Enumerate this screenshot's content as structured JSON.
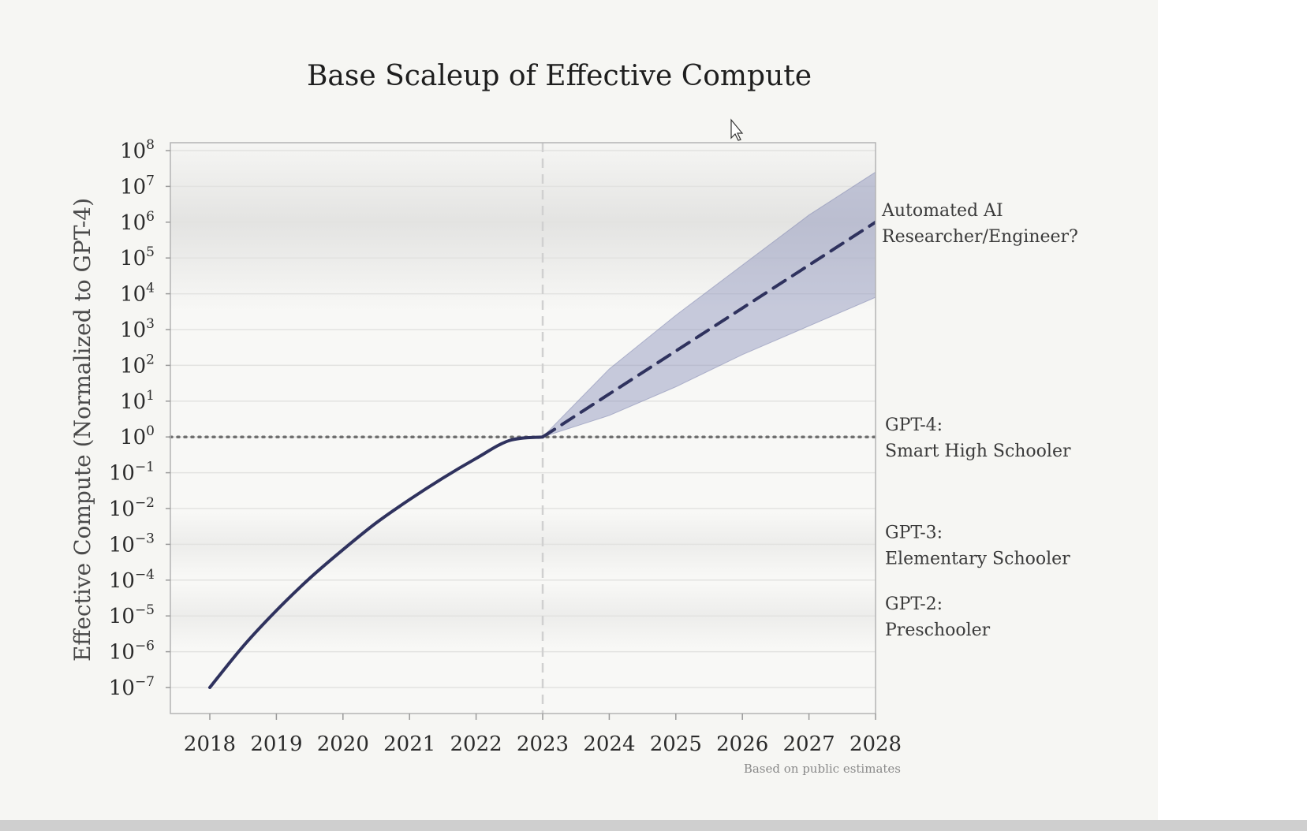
{
  "chart_data": {
    "type": "line",
    "title": "Base Scaleup of Effective Compute",
    "ylabel": "Effective Compute (Normalized to GPT-4)",
    "xlabel": "",
    "y_scale": "log",
    "x_ticks": [
      "2018",
      "2019",
      "2020",
      "2021",
      "2022",
      "2023",
      "2024",
      "2025",
      "2026",
      "2027",
      "2028"
    ],
    "y_ticks": [
      {
        "base": "10",
        "exp": "8"
      },
      {
        "base": "10",
        "exp": "7"
      },
      {
        "base": "10",
        "exp": "6"
      },
      {
        "base": "10",
        "exp": "5"
      },
      {
        "base": "10",
        "exp": "4"
      },
      {
        "base": "10",
        "exp": "3"
      },
      {
        "base": "10",
        "exp": "2"
      },
      {
        "base": "10",
        "exp": "1"
      },
      {
        "base": "10",
        "exp": "0"
      },
      {
        "base": "10",
        "exp": "−1"
      },
      {
        "base": "10",
        "exp": "−2"
      },
      {
        "base": "10",
        "exp": "−3"
      },
      {
        "base": "10",
        "exp": "−4"
      },
      {
        "base": "10",
        "exp": "−5"
      },
      {
        "base": "10",
        "exp": "−6"
      },
      {
        "base": "10",
        "exp": "−7"
      }
    ],
    "x_range": [
      2017.4,
      2028
    ],
    "y_range_log10": [
      -7.8,
      8.2
    ],
    "series": [
      {
        "style": "solid",
        "x": [
          2018,
          2018.5,
          2019,
          2019.5,
          2020,
          2020.5,
          2021,
          2021.5,
          2022,
          2022.5,
          2023
        ],
        "log10_y": [
          -7.0,
          -5.85,
          -4.85,
          -3.95,
          -3.15,
          -2.4,
          -1.75,
          -1.15,
          -0.6,
          -0.1,
          0.0
        ]
      },
      {
        "style": "dashed",
        "x": [
          2023,
          2024,
          2025,
          2026,
          2027,
          2028
        ],
        "log10_y": [
          0.0,
          1.2,
          2.4,
          3.6,
          4.8,
          6.0
        ]
      }
    ],
    "uncertainty_band": {
      "x": [
        2023,
        2024,
        2025,
        2026,
        2027,
        2028
      ],
      "log10_low": [
        0.0,
        0.6,
        1.4,
        2.3,
        3.1,
        3.9
      ],
      "log10_high": [
        0.0,
        1.9,
        3.4,
        4.8,
        6.2,
        7.4
      ]
    },
    "reference_lines": [
      {
        "axis": "y",
        "log10_value": 0,
        "style": "dotted"
      },
      {
        "axis": "x",
        "value": 2023,
        "style": "dashed"
      }
    ],
    "shaded_bands": [
      {
        "log10_value": 6.0,
        "halfwidth": 2.5,
        "strength": 0.22
      },
      {
        "log10_value": -3.0,
        "halfwidth": 0.9,
        "strength": 0.12
      },
      {
        "log10_value": -5.0,
        "halfwidth": 0.9,
        "strength": 0.12
      }
    ],
    "annotations": [
      {
        "lines": [
          "Automated AI",
          "Researcher/Engineer?"
        ],
        "log10_y": 6.0
      },
      {
        "lines": [
          "GPT-4:",
          "Smart High Schooler"
        ],
        "log10_y": 0.0
      },
      {
        "lines": [
          "GPT-3:",
          "Elementary Schooler"
        ],
        "log10_y": -3.0
      },
      {
        "lines": [
          "GPT-2:",
          "Preschooler"
        ],
        "log10_y": -5.0
      }
    ],
    "source": "Based on public estimates",
    "grid": true,
    "colors": {
      "line": "#2f325e",
      "band_fill": "#8a90bb",
      "reference": "#6f6f6f",
      "shading": "#9a9a9a"
    }
  }
}
